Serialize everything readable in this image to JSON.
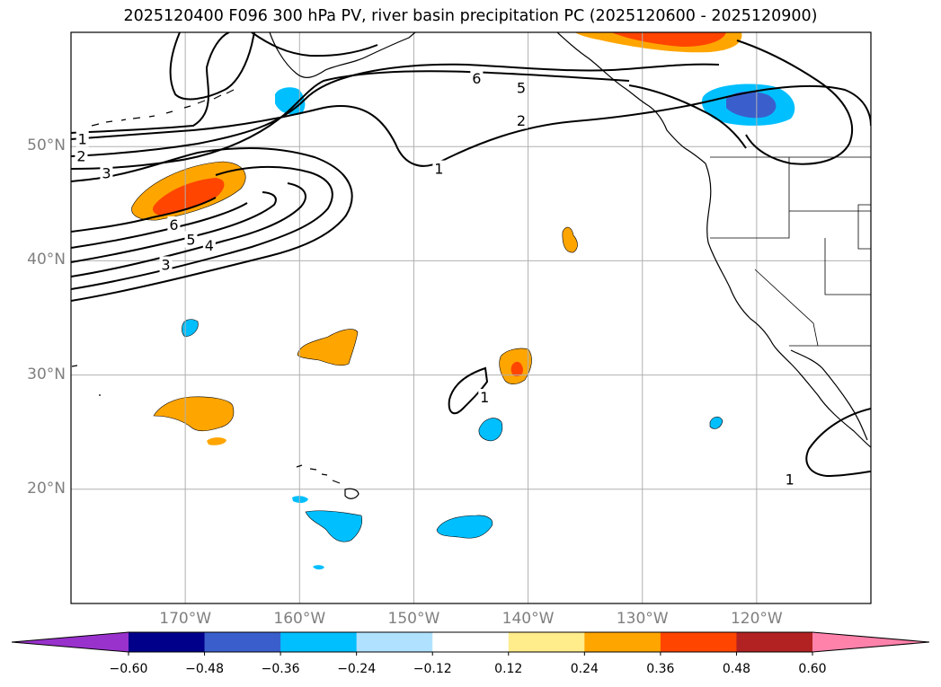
{
  "title": "2025120400 F096 300 hPa PV, river basin precipitation PC (2025120600 - 2025120900)",
  "map": {
    "projection": "PlateCarree",
    "extent": {
      "lon_min": -180,
      "lon_max": -110,
      "lat_min": 10,
      "lat_max": 60
    },
    "gridlines": true,
    "grid_color": "#b0b0b0",
    "coastlines": true,
    "borders": true,
    "lat_labels": [
      {
        "text": "50°N",
        "lat": 50
      },
      {
        "text": "40°N",
        "lat": 40
      },
      {
        "text": "30°N",
        "lat": 30
      },
      {
        "text": "20°N",
        "lat": 20
      }
    ],
    "lon_labels": [
      {
        "text": "170°W",
        "lon": -170
      },
      {
        "text": "160°W",
        "lon": -160
      },
      {
        "text": "150°W",
        "lon": -150
      },
      {
        "text": "140°W",
        "lon": -140
      },
      {
        "text": "130°W",
        "lon": -130
      },
      {
        "text": "120°W",
        "lon": -120
      }
    ],
    "pv_contour_labels": [
      {
        "text": "1",
        "lon": -179.0,
        "lat": 50.6
      },
      {
        "text": "2",
        "lon": -179.1,
        "lat": 49.1
      },
      {
        "text": "3",
        "lon": -176.9,
        "lat": 47.6
      },
      {
        "text": "6",
        "lon": -171.0,
        "lat": 43.1
      },
      {
        "text": "5",
        "lon": -169.5,
        "lat": 41.8
      },
      {
        "text": "4",
        "lon": -167.9,
        "lat": 41.3
      },
      {
        "text": "3",
        "lon": -171.7,
        "lat": 39.6
      },
      {
        "text": "1",
        "lon": -147.8,
        "lat": 48.0
      },
      {
        "text": "6",
        "lon": -144.5,
        "lat": 55.9
      },
      {
        "text": "5",
        "lon": -140.6,
        "lat": 55.1
      },
      {
        "text": "2",
        "lon": -140.6,
        "lat": 52.2
      },
      {
        "text": "1",
        "lon": -143.8,
        "lat": 28.0
      },
      {
        "text": "1",
        "lon": -117.1,
        "lat": 20.8
      }
    ]
  },
  "colorbar": {
    "levels": [
      -0.6,
      -0.48,
      -0.36,
      -0.24,
      -0.12,
      0.12,
      0.24,
      0.36,
      0.48,
      0.6
    ],
    "tick_labels": [
      "−0.60",
      "−0.48",
      "−0.36",
      "−0.24",
      "−0.12",
      "0.12",
      "0.24",
      "0.36",
      "0.48",
      "0.60"
    ],
    "colors": [
      "#9932cc",
      "#00008b",
      "#3a5fcd",
      "#00bfff",
      "#b0e2ff",
      "#ffffff",
      "#ffec8b",
      "#ffa500",
      "#ff4500",
      "#b22222",
      "#ff82ab"
    ],
    "extend": "both"
  }
}
